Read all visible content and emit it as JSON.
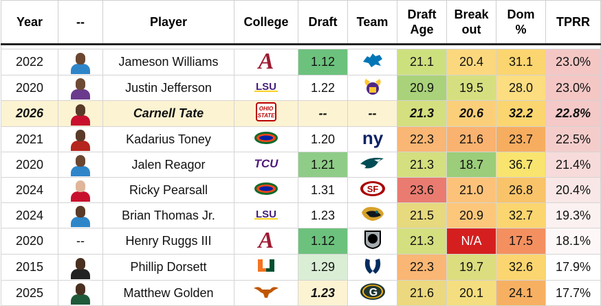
{
  "headers": {
    "year": "Year",
    "dash": "--",
    "player": "Player",
    "college": "College",
    "draft": "Draft",
    "team": "Team",
    "draft_age_1": "Draft",
    "draft_age_2": "Age",
    "breakout_1": "Break",
    "breakout_2": "out",
    "dom_1": "Dom",
    "dom_2": "%",
    "tprr": "TPRR"
  },
  "rows": [
    {
      "year": "2022",
      "headshot": "headshot-jameson-williams",
      "player": "Jameson Williams",
      "college": "alabama-logo",
      "draft": "1.12",
      "team": "lions-logo",
      "age": "21.1",
      "breakout": "20.4",
      "dom": "31.1",
      "tprr": "23.0%",
      "colors": {
        "draft": "#6cc27d",
        "age": "#cde07e",
        "breakout": "#fbd87e",
        "dom": "#fbd56f",
        "tprr": "#f4c7c5"
      },
      "skin": "#6b4630",
      "jersey": "#2e86c9"
    },
    {
      "year": "2020",
      "headshot": "headshot-justin-jefferson",
      "player": "Justin Jefferson",
      "college": "lsu-logo",
      "draft": "1.22",
      "team": "vikings-logo",
      "age": "20.9",
      "breakout": "19.5",
      "dom": "28.0",
      "tprr": "23.0%",
      "colors": {
        "draft": "#ffffff",
        "age": "#a9d27a",
        "breakout": "#d6df80",
        "dom": "#fcdd80",
        "tprr": "#f4c7c5"
      },
      "skin": "#6e4a34",
      "jersey": "#6a3a8c"
    },
    {
      "year": "2026",
      "headshot": "headshot-carnell-tate",
      "player": "Carnell Tate",
      "college": "ohio-state-logo",
      "draft": "--",
      "team": "--",
      "age": "21.3",
      "breakout": "20.6",
      "dom": "32.2",
      "tprr": "22.8%",
      "colors": {
        "draft": "#fcf3d2",
        "age": "#d4df7f",
        "breakout": "#fbcf7a",
        "dom": "#fbd56f",
        "tprr": "#f4c9c7"
      },
      "skin": "#5a3a28",
      "jersey": "#c8102e",
      "highlight": true
    },
    {
      "year": "2021",
      "headshot": "headshot-kadarius-toney",
      "player": "Kadarius Toney",
      "college": "florida-logo",
      "draft": "1.20",
      "team": "giants-logo",
      "age": "22.3",
      "breakout": "21.6",
      "dom": "23.7",
      "tprr": "22.5%",
      "colors": {
        "draft": "#ffffff",
        "age": "#f9b674",
        "breakout": "#f9b270",
        "dom": "#f7ad5f",
        "tprr": "#f4cdcb"
      },
      "skin": "#5a3a28",
      "jersey": "#b5261e"
    },
    {
      "year": "2020",
      "headshot": "headshot-jalen-reagor",
      "player": "Jalen Reagor",
      "college": "tcu-logo",
      "draft": "1.21",
      "team": "eagles-logo",
      "age": "21.3",
      "breakout": "18.7",
      "dom": "36.7",
      "tprr": "21.4%",
      "colors": {
        "draft": "#8fcc88",
        "age": "#d4df7f",
        "breakout": "#9bcd7a",
        "dom": "#f9e46f",
        "tprr": "#f6dbda"
      },
      "skin": "#6b4630",
      "jersey": "#2e86c9"
    },
    {
      "year": "2024",
      "headshot": "headshot-ricky-pearsall",
      "player": "Ricky Pearsall",
      "college": "florida-logo",
      "draft": "1.31",
      "team": "49ers-logo",
      "age": "23.6",
      "breakout": "21.0",
      "dom": "26.8",
      "tprr": "20.4%",
      "colors": {
        "draft": "#ffffff",
        "age": "#ea7b70",
        "breakout": "#fcc27a",
        "dom": "#f9c369",
        "tprr": "#f8e7e6"
      },
      "skin": "#e0b59a",
      "jersey": "#c8102e"
    },
    {
      "year": "2024",
      "headshot": "headshot-brian-thomas-jr",
      "player": "Brian Thomas Jr.",
      "college": "lsu-logo",
      "draft": "1.23",
      "team": "jaguars-logo",
      "age": "21.5",
      "breakout": "20.9",
      "dom": "32.7",
      "tprr": "19.3%",
      "colors": {
        "draft": "#ffffff",
        "age": "#e7d97e",
        "breakout": "#fcc77b",
        "dom": "#fbd56f",
        "tprr": "#fbf1f0"
      },
      "skin": "#5a3a28",
      "jersey": "#2e86c9"
    },
    {
      "year": "2020",
      "headshot": "--",
      "player": "Henry Ruggs III",
      "college": "alabama-logo",
      "draft": "1.12",
      "team": "raiders-logo",
      "age": "21.3",
      "breakout": "N/A",
      "dom": "17.5",
      "tprr": "18.1%",
      "colors": {
        "draft": "#6cc27d",
        "age": "#d4df7f",
        "breakout": "#d51f1f",
        "dom": "#f49060",
        "tprr": "#fdf8f7"
      },
      "skin": "",
      "jersey": ""
    },
    {
      "year": "2015",
      "headshot": "headshot-phillip-dorsett",
      "player": "Phillip Dorsett",
      "college": "miami-logo",
      "draft": "1.29",
      "team": "colts-logo",
      "age": "22.3",
      "breakout": "19.7",
      "dom": "32.6",
      "tprr": "17.9%",
      "colors": {
        "draft": "#d9eed5",
        "age": "#f9b674",
        "breakout": "#dcdd7f",
        "dom": "#fbd56f",
        "tprr": "#ffffff"
      },
      "skin": "#4a3020",
      "jersey": "#222222"
    },
    {
      "year": "2025",
      "headshot": "headshot-matthew-golden",
      "player": "Matthew Golden",
      "college": "texas-logo",
      "draft": "1.23",
      "team": "packers-logo",
      "age": "21.6",
      "breakout": "20.1",
      "dom": "24.1",
      "tprr": "17.7%",
      "colors": {
        "draft": "#fcf3d2",
        "age": "#ecd87e",
        "breakout": "#f4de7f",
        "dom": "#f7b062",
        "tprr": "#ffffff"
      },
      "skin": "#4a3020",
      "jersey": "#1f5a3a",
      "draft_bold": true
    }
  ]
}
